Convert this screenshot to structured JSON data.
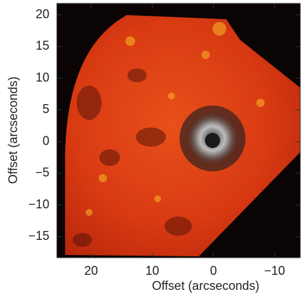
{
  "chart_data": {
    "type": "image",
    "xlabel": "Offset (arcseconds)",
    "ylabel": "Offset (arcseconds)",
    "xlim": [
      25.6,
      -14.2
    ],
    "ylim": [
      -18.3,
      21.8
    ],
    "xticks": [
      20,
      10,
      0,
      {
        "value": -10,
        "label": "−10"
      }
    ],
    "yticks": [
      20,
      15,
      10,
      5,
      0,
      {
        "value": -5,
        "label": "−5"
      },
      {
        "value": -10,
        "label": "−10"
      },
      {
        "value": -15,
        "label": "−15"
      }
    ]
  }
}
